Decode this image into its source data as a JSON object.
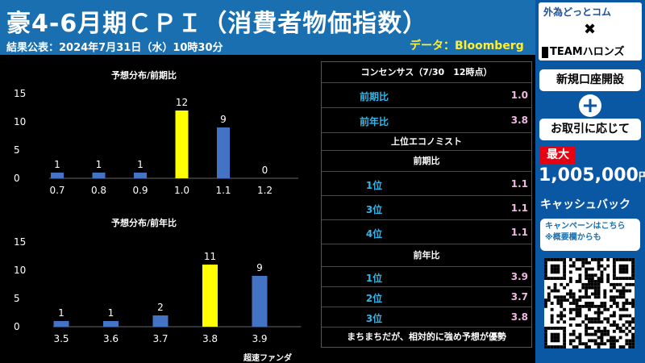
{
  "header": {
    "title": "豪4-6月期ＣＰＩ（消費者物価指数）",
    "subtitle": "結果公表：2024年7月31日（水）10時30分",
    "source": "データ：Bloomberg"
  },
  "chart_data": [
    {
      "type": "bar",
      "title": "予想分布/前期比",
      "categories": [
        "0.7",
        "0.8",
        "0.9",
        "1.0",
        "1.1",
        "1.2"
      ],
      "values": [
        1,
        1,
        1,
        12,
        9,
        0
      ],
      "highlight_index": 3,
      "ylim": [
        0,
        15
      ],
      "yticks": [
        0,
        5,
        10,
        15
      ],
      "colors": {
        "bar": "#4472c4",
        "highlight": "#ffff00"
      }
    },
    {
      "type": "bar",
      "title": "予想分布/前年比",
      "categories": [
        "3.5",
        "3.6",
        "3.7",
        "3.8",
        "3.9"
      ],
      "values": [
        1,
        1,
        2,
        11,
        9
      ],
      "highlight_index": 3,
      "ylim": [
        0,
        15
      ],
      "yticks": [
        0,
        5,
        10,
        15
      ],
      "colors": {
        "bar": "#4472c4",
        "highlight": "#ffff00"
      }
    }
  ],
  "table": {
    "consensus_header": "コンセンサス（7/30　12時点）",
    "consensus": [
      {
        "label": "前期比",
        "value": "1.0"
      },
      {
        "label": "前年比",
        "value": "3.8"
      }
    ],
    "top_header": "上位エコノミスト",
    "qoq_header": "前期比",
    "qoq": [
      {
        "label": "1位",
        "value": "1.1"
      },
      {
        "label": "3位",
        "value": "1.1"
      },
      {
        "label": "4位",
        "value": "1.1"
      }
    ],
    "yoy_header": "前年比",
    "yoy": [
      {
        "label": "1位",
        "value": "3.9"
      },
      {
        "label": "2位",
        "value": "3.7"
      },
      {
        "label": "3位",
        "value": "3.8"
      }
    ],
    "summary": "まちまちだが、相対的に強め予想が優勢"
  },
  "footer": "超速ファンダ",
  "sidebar": {
    "brand_a": "外為どっとコム",
    "brand_x": "✖",
    "brand_b": "TEAMハロンズ",
    "open_account": "新規口座開設",
    "plus": "+",
    "per_trade": "お取引に応じて",
    "max_label": "最大",
    "amount": "1,005,000",
    "amount_unit": "円",
    "cashback": "キャッシュバック",
    "campaign_line1": "キャンペーンはこちら",
    "campaign_line2": "※概要欄からも"
  },
  "colors": {
    "header_bg": "#1a6fb0",
    "sidebar_bg": "#0a57a4",
    "label_blue": "#33b5e8",
    "value_pink": "#f0b8e0",
    "source_yellow": "#ffee33"
  }
}
